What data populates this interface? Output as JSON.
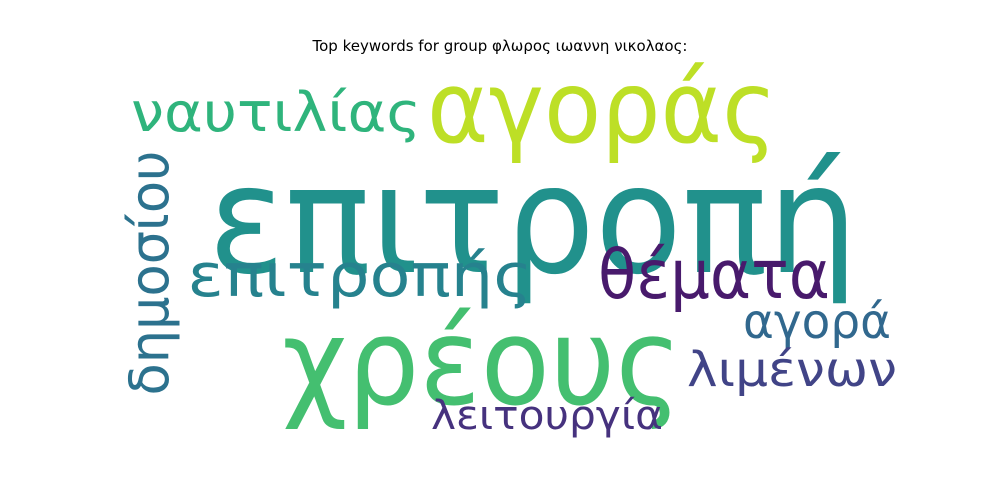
{
  "title": "Top keywords for group φλωρος ιωαννη νικολαος:",
  "words": [
    {
      "text": "επιτροπή",
      "color": "#21918c"
    },
    {
      "text": "αγοράς",
      "color": "#bddf26"
    },
    {
      "text": "ναυτιλίας",
      "color": "#2fb47c"
    },
    {
      "text": "δημοσίου",
      "color": "#2c728e"
    },
    {
      "text": "επιτροπής",
      "color": "#26828e"
    },
    {
      "text": "θέματα",
      "color": "#481a6c"
    },
    {
      "text": "χρέους",
      "color": "#44bf70"
    },
    {
      "text": "αγορά",
      "color": "#31688e"
    },
    {
      "text": "λιμένων",
      "color": "#414487"
    },
    {
      "text": "λειτουργία",
      "color": "#46327e"
    }
  ]
}
